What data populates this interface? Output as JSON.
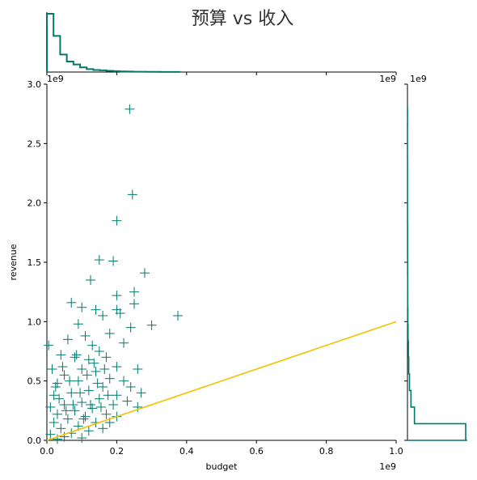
{
  "title": "预算 vs 收入",
  "colors": {
    "scatter": "#00796b",
    "histogram": "#00796b",
    "line": "#f5c000",
    "axis": "#000000"
  },
  "chart_data": {
    "type": "scatter",
    "title": "预算 vs 收入",
    "xlabel": "budget",
    "ylabel": "revenue",
    "x_offset_text": "1e9",
    "y_offset_text": "1e9",
    "marginal_x_offset_text": "1e9",
    "marginal_y_offset_text": "1e9",
    "xlim": [
      0,
      1.0
    ],
    "ylim": [
      0,
      3.0
    ],
    "x_ticks": [
      "0.0",
      "0.2",
      "0.4",
      "0.6",
      "0.8",
      "1.0"
    ],
    "y_ticks": [
      "0.0",
      "0.5",
      "1.0",
      "1.5",
      "2.0",
      "2.5",
      "3.0"
    ],
    "marker": "+",
    "reference_line": {
      "x": [
        0,
        1.0
      ],
      "y": [
        0,
        1.0
      ]
    },
    "points": [
      [
        0.237,
        2.79
      ],
      [
        0.245,
        2.07
      ],
      [
        0.2,
        1.85
      ],
      [
        0.15,
        1.52
      ],
      [
        0.19,
        1.51
      ],
      [
        0.28,
        1.41
      ],
      [
        0.125,
        1.35
      ],
      [
        0.25,
        1.25
      ],
      [
        0.2,
        1.22
      ],
      [
        0.375,
        1.05
      ],
      [
        0.07,
        1.16
      ],
      [
        0.1,
        1.12
      ],
      [
        0.14,
        1.1
      ],
      [
        0.2,
        1.1
      ],
      [
        0.25,
        1.15
      ],
      [
        0.3,
        0.97
      ],
      [
        0.24,
        0.95
      ],
      [
        0.16,
        1.05
      ],
      [
        0.09,
        0.98
      ],
      [
        0.21,
        1.07
      ],
      [
        0.18,
        0.9
      ],
      [
        0.11,
        0.88
      ],
      [
        0.005,
        0.8
      ],
      [
        0.06,
        0.85
      ],
      [
        0.13,
        0.8
      ],
      [
        0.22,
        0.82
      ],
      [
        0.15,
        0.75
      ],
      [
        0.08,
        0.7
      ],
      [
        0.04,
        0.72
      ],
      [
        0.17,
        0.7
      ],
      [
        0.12,
        0.68
      ],
      [
        0.26,
        0.6
      ],
      [
        0.2,
        0.62
      ],
      [
        0.1,
        0.6
      ],
      [
        0.05,
        0.55
      ],
      [
        0.14,
        0.58
      ],
      [
        0.27,
        0.4
      ],
      [
        0.24,
        0.45
      ],
      [
        0.22,
        0.5
      ],
      [
        0.18,
        0.52
      ],
      [
        0.09,
        0.5
      ],
      [
        0.03,
        0.48
      ],
      [
        0.16,
        0.45
      ],
      [
        0.12,
        0.42
      ],
      [
        0.07,
        0.4
      ],
      [
        0.02,
        0.38
      ],
      [
        0.2,
        0.38
      ],
      [
        0.15,
        0.35
      ],
      [
        0.1,
        0.32
      ],
      [
        0.05,
        0.3
      ],
      [
        0.01,
        0.28
      ],
      [
        0.26,
        0.28
      ],
      [
        0.19,
        0.3
      ],
      [
        0.13,
        0.27
      ],
      [
        0.08,
        0.25
      ],
      [
        0.03,
        0.22
      ],
      [
        0.17,
        0.22
      ],
      [
        0.11,
        0.2
      ],
      [
        0.06,
        0.18
      ],
      [
        0.02,
        0.15
      ],
      [
        0.14,
        0.15
      ],
      [
        0.09,
        0.12
      ],
      [
        0.04,
        0.1
      ],
      [
        0.12,
        0.08
      ],
      [
        0.07,
        0.06
      ],
      [
        0.01,
        0.05
      ],
      [
        0.05,
        0.03
      ],
      [
        0.1,
        0.02
      ],
      [
        0.03,
        0.01
      ],
      [
        0.16,
        0.1
      ],
      [
        0.2,
        0.2
      ],
      [
        0.23,
        0.33
      ],
      [
        0.18,
        0.15
      ],
      [
        0.015,
        0.6
      ],
      [
        0.025,
        0.45
      ],
      [
        0.035,
        0.35
      ],
      [
        0.045,
        0.62
      ],
      [
        0.055,
        0.25
      ],
      [
        0.065,
        0.5
      ],
      [
        0.075,
        0.3
      ],
      [
        0.085,
        0.72
      ],
      [
        0.095,
        0.4
      ],
      [
        0.105,
        0.18
      ],
      [
        0.115,
        0.55
      ],
      [
        0.125,
        0.3
      ],
      [
        0.135,
        0.65
      ],
      [
        0.145,
        0.48
      ],
      [
        0.155,
        0.28
      ],
      [
        0.165,
        0.6
      ],
      [
        0.175,
        0.38
      ]
    ],
    "marginal_x_histogram": {
      "bin_edges": [
        0.0,
        0.019,
        0.038,
        0.057,
        0.076,
        0.095,
        0.114,
        0.133,
        0.152,
        0.171,
        0.19,
        0.209,
        0.228,
        0.247,
        0.266,
        0.285,
        0.304,
        0.323,
        0.342,
        0.361,
        0.38
      ],
      "counts": [
        1.0,
        0.62,
        0.3,
        0.18,
        0.13,
        0.08,
        0.05,
        0.035,
        0.03,
        0.02,
        0.015,
        0.01,
        0.008,
        0.006,
        0.005,
        0.004,
        0.003,
        0.002,
        0.002,
        0.001
      ]
    },
    "marginal_y_histogram": {
      "bin_edges": [
        0.0,
        0.14,
        0.28,
        0.42,
        0.56,
        0.7,
        0.84,
        0.98,
        1.12,
        1.26,
        1.4,
        1.54,
        1.68,
        1.82,
        1.96,
        2.1,
        2.24,
        2.38,
        2.52,
        2.66,
        2.8
      ],
      "counts": [
        1.0,
        0.12,
        0.06,
        0.035,
        0.022,
        0.015,
        0.01,
        0.007,
        0.005,
        0.004,
        0.003,
        0.002,
        0.002,
        0.001,
        0.001,
        0.001,
        0.001,
        0.0,
        0.0,
        0.001
      ]
    }
  }
}
